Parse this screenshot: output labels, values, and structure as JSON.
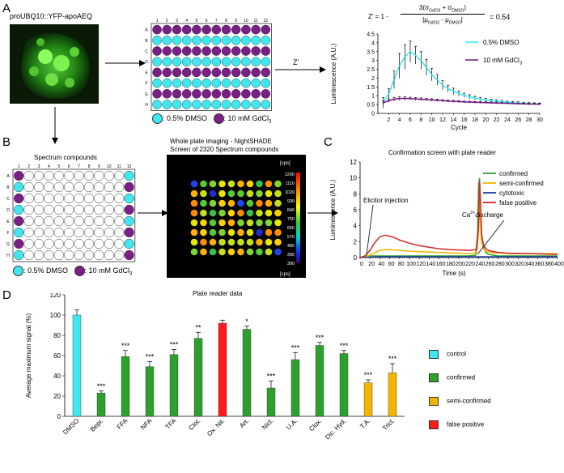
{
  "panels": {
    "a": "A",
    "b": "B",
    "c": "C",
    "d": "D"
  },
  "microscopy": {
    "label": "proUBQ10::YFP-apoAEQ"
  },
  "plate_a": {
    "cols": [
      "1",
      "2",
      "3",
      "4",
      "5",
      "6",
      "7",
      "8",
      "9",
      "10",
      "11",
      "12"
    ],
    "rows": [
      "A",
      "B",
      "C",
      "D",
      "E",
      "F",
      "G",
      "H"
    ],
    "row_types": [
      "gdcl3",
      "dmso",
      "gdcl3",
      "dmso",
      "gdcl3",
      "dmso",
      "gdcl3",
      "dmso"
    ],
    "legend_dmso": ": 0.5% DMSO",
    "legend_gd": ": 10 mM GdCl",
    "legend_gd_sub": "3",
    "colors": {
      "dmso": "#3ee8ee",
      "gdcl3": "#7a1f86"
    },
    "arrow_label": "Z'"
  },
  "zprime": {
    "prefix": "Z' = 1 - ",
    "numerator": "3(σ",
    "num_sub1": "GdCl3",
    "num_mid": " + σ",
    "num_sub2": "DMSO",
    "num_end": ")",
    "den": "|μ",
    "den_sub1": "GdCl3",
    "den_mid": " - μ",
    "den_sub2": "DMSO",
    "den_end": "|",
    "result": "= 0.54"
  },
  "plate_b": {
    "title": "Spectrum compounds",
    "legend_dmso": ": 0.5% DMSO",
    "legend_gd": ": 10 mM GdCl",
    "legend_gd_sub": "3"
  },
  "imaging": {
    "title_line1": "Whole plate imaging - NightSHADE",
    "title_line2": "Screen of 2320 Spectrum compounds",
    "cbar_unit_top": "[cps]",
    "cbar_unit_bottom": "[cps]",
    "cbar_ticks": [
      "1200",
      "1110",
      "1020",
      "930",
      "840",
      "750",
      "660",
      "570",
      "480",
      "390",
      "300"
    ]
  },
  "chart_data": [
    {
      "type": "line",
      "panel": "A",
      "xlabel": "Cycle",
      "ylabel": "Luminescence (A.U.)",
      "x": [
        1,
        2,
        3,
        4,
        5,
        6,
        7,
        8,
        9,
        10,
        11,
        12,
        13,
        14,
        15,
        16,
        17,
        18,
        19,
        20,
        21,
        22,
        23,
        24,
        25,
        26,
        27,
        28,
        29,
        30
      ],
      "xticks": [
        "2",
        "4",
        "6",
        "8",
        "10",
        "12",
        "14",
        "16",
        "18",
        "20",
        "22",
        "24",
        "26",
        "28",
        "30"
      ],
      "yticks": [
        "0",
        "0.5",
        "1",
        "1.5",
        "2",
        "2.5",
        "3",
        "3.5",
        "4",
        "4.5"
      ],
      "ylim": [
        0,
        4.5
      ],
      "xlim": [
        0,
        30
      ],
      "series": [
        {
          "name": "0.5% DMSO",
          "color": "#3ee8ee",
          "values": [
            0.6,
            1.1,
            1.9,
            2.7,
            3.2,
            3.5,
            3.3,
            3.0,
            2.6,
            2.2,
            1.9,
            1.6,
            1.4,
            1.25,
            1.12,
            1.02,
            0.94,
            0.87,
            0.81,
            0.76,
            0.72,
            0.69,
            0.66,
            0.63,
            0.61,
            0.59,
            0.57,
            0.55,
            0.54,
            0.53
          ],
          "errors": [
            0.3,
            0.3,
            0.5,
            0.7,
            0.7,
            0.6,
            0.5,
            0.5,
            0.45,
            0.35,
            0.3,
            0.25,
            0.2,
            0.18,
            0.15,
            0.13,
            0.12,
            0.1,
            0.1,
            0.09,
            0.09,
            0.08,
            0.08,
            0.07,
            0.07,
            0.07,
            0.06,
            0.06,
            0.06,
            0.06
          ]
        },
        {
          "name": "10 mM GdCl3",
          "color": "#7a1f86",
          "values": [
            0.6,
            0.72,
            0.8,
            0.84,
            0.85,
            0.84,
            0.82,
            0.8,
            0.78,
            0.76,
            0.74,
            0.72,
            0.7,
            0.68,
            0.67,
            0.65,
            0.64,
            0.63,
            0.62,
            0.61,
            0.6,
            0.59,
            0.58,
            0.57,
            0.56,
            0.55,
            0.54,
            0.53,
            0.53,
            0.52
          ],
          "errors": [
            0.1,
            0.1,
            0.1,
            0.1,
            0.1,
            0.08,
            0.08,
            0.08,
            0.07,
            0.07,
            0.07,
            0.06,
            0.06,
            0.06,
            0.06,
            0.05,
            0.05,
            0.05,
            0.05,
            0.05,
            0.05,
            0.05,
            0.04,
            0.04,
            0.04,
            0.04,
            0.04,
            0.04,
            0.04,
            0.04
          ]
        }
      ],
      "legend": [
        {
          "label": "0.5% DMSO",
          "sub": ""
        },
        {
          "label": "10 mM GdCl",
          "sub": "3"
        }
      ]
    },
    {
      "type": "line",
      "panel": "C",
      "title": "Confirmation screen with plate reader",
      "xlabel": "Time (s)",
      "ylabel": "Luminescence (A.U.)",
      "xticks": [
        "0",
        "20",
        "40",
        "60",
        "80",
        "100",
        "120",
        "140",
        "160",
        "180",
        "200",
        "220",
        "240",
        "260",
        "280",
        "300",
        "320",
        "340",
        "360",
        "380",
        "400"
      ],
      "yticks": [
        "0",
        "2",
        "4",
        "6",
        "8",
        "10",
        "12"
      ],
      "xlim": [
        0,
        400
      ],
      "ylim": [
        0,
        12
      ],
      "annotations": [
        {
          "text": "Elicitor injection"
        },
        {
          "text": "Ca",
          "sup": "2+",
          "rest": " discharge"
        }
      ],
      "series": [
        {
          "name": "confirmed",
          "color": "#2ca02c",
          "x": [
            0,
            5,
            10,
            15,
            20,
            40,
            60,
            80,
            100,
            140,
            180,
            220,
            234,
            238,
            240,
            242,
            244,
            246,
            250,
            255,
            260,
            270,
            280,
            300,
            340,
            400
          ],
          "y": [
            0,
            0.1,
            0.2,
            0.2,
            0.2,
            0.2,
            0.2,
            0.2,
            0.2,
            0.2,
            0.2,
            0.2,
            0.3,
            3,
            9,
            10,
            6,
            3,
            1.3,
            0.6,
            0.4,
            0.3,
            0.2,
            0.2,
            0.2,
            0.2
          ]
        },
        {
          "name": "semi-confirmed",
          "color": "#f2b400",
          "x": [
            0,
            10,
            20,
            30,
            40,
            50,
            60,
            80,
            100,
            140,
            180,
            220,
            236,
            240,
            242,
            244,
            246,
            250,
            255,
            260,
            270,
            280,
            300,
            340,
            400
          ],
          "y": [
            0,
            0.1,
            0.3,
            0.6,
            0.9,
            1.0,
            1.0,
            0.9,
            0.8,
            0.7,
            0.6,
            0.5,
            0.6,
            3,
            7,
            4,
            2,
            1.1,
            0.8,
            0.7,
            0.6,
            0.6,
            0.5,
            0.5,
            0.5
          ]
        },
        {
          "name": "cytotoxic",
          "color": "#1f3f9f",
          "x": [
            0,
            20,
            40,
            60,
            100,
            140,
            180,
            220,
            240,
            260,
            300,
            340,
            400
          ],
          "y": [
            0,
            0.05,
            0.1,
            0.1,
            0.1,
            0.1,
            0.1,
            0.1,
            0.1,
            0.1,
            0.1,
            0.1,
            0.1
          ]
        },
        {
          "name": "false positive",
          "color": "#d62728",
          "x": [
            0,
            10,
            20,
            30,
            40,
            50,
            60,
            70,
            80,
            100,
            120,
            140,
            160,
            180,
            200,
            220,
            236,
            240,
            242,
            244,
            246,
            250,
            255,
            260,
            270,
            280,
            300,
            340,
            400
          ],
          "y": [
            0,
            0.2,
            0.9,
            1.9,
            2.6,
            2.8,
            2.7,
            2.5,
            2.2,
            1.8,
            1.5,
            1.3,
            1.1,
            1.0,
            0.95,
            0.9,
            1.0,
            4,
            9.6,
            7,
            3,
            1.6,
            1.1,
            0.9,
            0.75,
            0.65,
            0.55,
            0.5,
            0.4
          ]
        }
      ]
    },
    {
      "type": "bar",
      "panel": "D",
      "title": "Plate reader data",
      "ylabel": "Average maximum signal (%)",
      "ylim": [
        0,
        120
      ],
      "yticks": [
        "0",
        "20",
        "40",
        "60",
        "80",
        "100",
        "120"
      ],
      "categories": [
        "DMSO",
        "Bepr.",
        "FFA",
        "NFA",
        "TFA",
        "Clot.",
        "Ox. Nit.",
        "Art.",
        "Nicl.",
        "U.A.",
        "Clox.",
        "Dic. Hyd.",
        "T.A.",
        "Tricl."
      ],
      "values": [
        100,
        23,
        59,
        49,
        61,
        77,
        92,
        86,
        28,
        56,
        70,
        62,
        33,
        43
      ],
      "errors": [
        5,
        2,
        6,
        5,
        5,
        6,
        3,
        3,
        7,
        7,
        3,
        3,
        3,
        9
      ],
      "groups": [
        "control",
        "confirmed",
        "confirmed",
        "confirmed",
        "confirmed",
        "confirmed",
        "false positive",
        "confirmed",
        "confirmed",
        "confirmed",
        "confirmed",
        "confirmed",
        "semi-confirmed",
        "semi-confirmed"
      ],
      "significance": [
        "",
        "***",
        "***",
        "***",
        "***",
        "**",
        "",
        "*",
        "***",
        "***",
        "***",
        "***",
        "***",
        "***"
      ],
      "legend": [
        {
          "label": "control",
          "color": "#3ee8ee"
        },
        {
          "label": "confirmed",
          "color": "#2ca02c"
        },
        {
          "label": "semi-confirmed",
          "color": "#f2b400"
        },
        {
          "label": "false positive",
          "color": "#ff1a1a"
        }
      ]
    }
  ]
}
